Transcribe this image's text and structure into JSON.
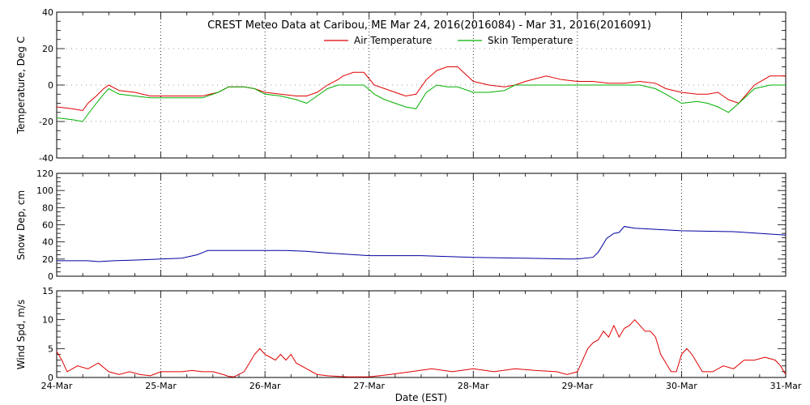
{
  "title": "CREST Meteo Data at Caribou, ME   Mar 24, 2016(2016084) - Mar 31, 2016(2016091)",
  "xlabel": "Date (EST)",
  "x_ticks": [
    "24-Mar",
    "25-Mar",
    "26-Mar",
    "27-Mar",
    "28-Mar",
    "29-Mar",
    "30-Mar",
    "31-Mar"
  ],
  "colors": {
    "air_temperature": "#e00000",
    "skin_temperature": "#00b000",
    "snow_depth": "#0000a0",
    "wind_speed": "#e00000",
    "grid": "#000000"
  },
  "chart_data": [
    {
      "type": "line",
      "ylabel": "Temperature, Deg C",
      "xlim": [
        0,
        7
      ],
      "ylim": [
        -40,
        40
      ],
      "y_ticks": [
        -40,
        -20,
        0,
        20,
        40
      ],
      "grid": "dotted vertical lines at each day",
      "legend_placement": "top-center",
      "series": [
        {
          "name": "Air Temperature",
          "x": [
            0,
            0.15,
            0.25,
            0.3,
            0.38,
            0.45,
            0.5,
            0.6,
            0.75,
            0.9,
            1.0,
            1.2,
            1.4,
            1.55,
            1.65,
            1.8,
            1.9,
            2.0,
            2.15,
            2.3,
            2.4,
            2.5,
            2.6,
            2.7,
            2.75,
            2.85,
            2.95,
            3.05,
            3.15,
            3.25,
            3.35,
            3.45,
            3.55,
            3.65,
            3.75,
            3.85,
            4.0,
            4.15,
            4.3,
            4.4,
            4.5,
            4.7,
            4.85,
            5.0,
            5.15,
            5.3,
            5.45,
            5.6,
            5.75,
            5.85,
            6.0,
            6.15,
            6.25,
            6.35,
            6.45,
            6.55,
            6.7,
            6.85,
            7.0
          ],
          "values": [
            -12,
            -13,
            -14,
            -10,
            -6,
            -2,
            0,
            -3,
            -4,
            -6,
            -6,
            -6,
            -6,
            -4,
            -1,
            -1,
            -2,
            -4,
            -5,
            -6,
            -6,
            -4,
            0,
            3,
            5,
            7,
            7,
            0,
            -2,
            -4,
            -6,
            -5,
            3,
            8,
            10,
            10,
            2,
            0,
            -1,
            0,
            2,
            5,
            3,
            2,
            2,
            1,
            1,
            2,
            1,
            -2,
            -4,
            -5,
            -5,
            -4,
            -8,
            -10,
            0,
            5,
            5
          ]
        },
        {
          "name": "Skin Temperature",
          "x": [
            0,
            0.15,
            0.25,
            0.3,
            0.38,
            0.45,
            0.5,
            0.6,
            0.75,
            0.9,
            1.0,
            1.2,
            1.4,
            1.55,
            1.65,
            1.8,
            1.9,
            2.0,
            2.15,
            2.3,
            2.4,
            2.5,
            2.6,
            2.7,
            2.75,
            2.85,
            2.95,
            3.05,
            3.15,
            3.25,
            3.35,
            3.45,
            3.55,
            3.65,
            3.75,
            3.85,
            4.0,
            4.15,
            4.3,
            4.4,
            4.5,
            4.7,
            4.85,
            5.0,
            5.15,
            5.3,
            5.45,
            5.6,
            5.75,
            5.85,
            6.0,
            6.15,
            6.25,
            6.35,
            6.45,
            6.55,
            6.7,
            6.85,
            7.0
          ],
          "values": [
            -18,
            -19,
            -20,
            -16,
            -10,
            -5,
            -2,
            -5,
            -6,
            -7,
            -7,
            -7,
            -7,
            -4,
            -1,
            -1,
            -2,
            -5,
            -6,
            -8,
            -10,
            -6,
            -2,
            0,
            0,
            0,
            0,
            -5,
            -8,
            -10,
            -12,
            -13,
            -4,
            0,
            -1,
            -1,
            -4,
            -4,
            -3,
            0,
            0,
            0,
            0,
            0,
            0,
            0,
            0,
            0,
            -2,
            -5,
            -10,
            -9,
            -10,
            -12,
            -15,
            -10,
            -2,
            0,
            0
          ]
        }
      ]
    },
    {
      "type": "line",
      "ylabel": "Snow Dep, cm",
      "xlim": [
        0,
        7
      ],
      "ylim": [
        0,
        120
      ],
      "y_ticks": [
        0,
        20,
        40,
        60,
        80,
        100,
        120
      ],
      "series": [
        {
          "x": [
            0,
            0.3,
            0.4,
            0.55,
            0.8,
            1.0,
            1.2,
            1.35,
            1.45,
            1.6,
            2.0,
            2.2,
            2.4,
            2.6,
            3.0,
            3.5,
            4.0,
            4.5,
            4.9,
            5.0,
            5.15,
            5.2,
            5.28,
            5.35,
            5.4,
            5.45,
            5.55,
            6.0,
            6.5,
            7.0
          ],
          "values": [
            18,
            18,
            17,
            18,
            19,
            20,
            21,
            25,
            30,
            30,
            30,
            30,
            29,
            27,
            24,
            24,
            22,
            21,
            20,
            20,
            22,
            28,
            44,
            50,
            51,
            58,
            56,
            53,
            52,
            48
          ]
        }
      ]
    },
    {
      "type": "line",
      "ylabel": "Wind Spd, m/s",
      "xlim": [
        0,
        7
      ],
      "ylim": [
        0,
        15
      ],
      "y_ticks": [
        0,
        5,
        10,
        15
      ],
      "series": [
        {
          "x": [
            0,
            0.05,
            0.1,
            0.2,
            0.3,
            0.4,
            0.5,
            0.6,
            0.7,
            0.8,
            0.9,
            1.0,
            1.1,
            1.2,
            1.3,
            1.4,
            1.5,
            1.6,
            1.65,
            1.7,
            1.8,
            1.85,
            1.9,
            1.95,
            2.0,
            2.05,
            2.1,
            2.15,
            2.2,
            2.25,
            2.3,
            2.4,
            2.5,
            2.6,
            2.7,
            2.8,
            2.9,
            3.0,
            3.2,
            3.4,
            3.6,
            3.8,
            4.0,
            4.2,
            4.4,
            4.6,
            4.8,
            4.9,
            5.0,
            5.05,
            5.1,
            5.15,
            5.2,
            5.25,
            5.3,
            5.35,
            5.4,
            5.45,
            5.5,
            5.55,
            5.6,
            5.65,
            5.7,
            5.75,
            5.8,
            5.85,
            5.9,
            5.95,
            6.0,
            6.05,
            6.1,
            6.15,
            6.2,
            6.3,
            6.4,
            6.5,
            6.6,
            6.7,
            6.8,
            6.9,
            6.95,
            7.0
          ],
          "values": [
            4.5,
            3,
            1,
            2,
            1.5,
            2.5,
            1,
            0.5,
            1,
            0.5,
            0.3,
            1,
            1,
            1,
            1.2,
            1,
            1,
            0.5,
            0.2,
            0.1,
            1,
            2.5,
            4,
            5,
            4,
            3.5,
            3,
            4,
            3,
            4,
            2.5,
            1.5,
            0.5,
            0.3,
            0.2,
            0.1,
            0.1,
            0.1,
            0.5,
            1,
            1.5,
            1,
            1.5,
            1,
            1.5,
            1.2,
            1,
            0.5,
            1,
            3,
            5,
            6,
            6.5,
            8,
            7,
            9,
            7,
            8.5,
            9,
            10,
            9,
            8,
            8,
            7,
            4,
            2.5,
            1,
            1,
            4,
            5,
            4,
            2.5,
            1,
            1,
            2,
            1.5,
            3,
            3,
            3.5,
            3,
            2,
            0.5
          ]
        }
      ]
    }
  ]
}
